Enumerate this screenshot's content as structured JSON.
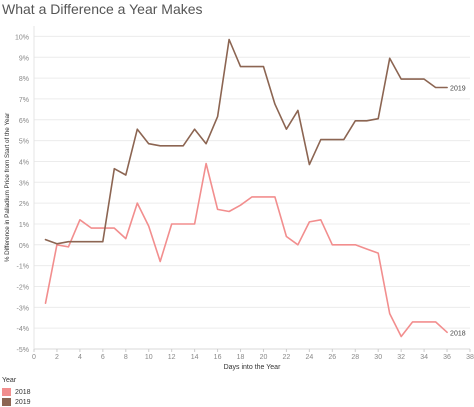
{
  "title": "What a Difference a Year Makes",
  "chart_data": {
    "type": "line",
    "title": "What a Difference a Year Makes",
    "xlabel": "Days into the Year",
    "ylabel": "% Difference in Palladium Price from Start of the Year",
    "xlim": [
      0,
      38
    ],
    "ylim": [
      -5,
      10.5
    ],
    "x_ticks": [
      "0",
      "2",
      "4",
      "6",
      "8",
      "10",
      "12",
      "14",
      "16",
      "18",
      "20",
      "22",
      "24",
      "26",
      "28",
      "30",
      "32",
      "34",
      "36",
      "38"
    ],
    "y_ticks": [
      "10%",
      "9%",
      "8%",
      "7%",
      "6%",
      "5%",
      "4%",
      "3%",
      "2%",
      "1%",
      "0%",
      "-1%",
      "-2%",
      "-3%",
      "-4%",
      "-5%"
    ],
    "grid": true,
    "legend_title": "Year",
    "series": [
      {
        "name": "2018",
        "color": "#f28e8e",
        "x": [
          1,
          2,
          3,
          4,
          5,
          6,
          7,
          8,
          9,
          10,
          11,
          12,
          13,
          14,
          15,
          16,
          17,
          18,
          19,
          20,
          21,
          22,
          23,
          24,
          25,
          26,
          27,
          28,
          29,
          30,
          31,
          32,
          33,
          34,
          35,
          36
        ],
        "y": [
          -2.8,
          0.0,
          -0.1,
          1.2,
          0.8,
          0.8,
          0.8,
          0.3,
          2.0,
          0.9,
          -0.8,
          1.0,
          1.0,
          1.0,
          3.9,
          1.7,
          1.6,
          1.9,
          2.3,
          2.3,
          2.3,
          0.4,
          0.0,
          1.1,
          1.2,
          0.0,
          0.0,
          0.0,
          -0.2,
          -0.4,
          -3.3,
          -4.4,
          -3.7,
          -3.7,
          -3.7,
          -4.2
        ],
        "end_label": "2018"
      },
      {
        "name": "2019",
        "color": "#8c6552",
        "x": [
          1,
          2,
          3,
          4,
          5,
          6,
          7,
          8,
          9,
          10,
          11,
          12,
          13,
          14,
          15,
          16,
          17,
          18,
          19,
          20,
          21,
          22,
          23,
          24,
          25,
          26,
          27,
          28,
          29,
          30,
          31,
          32,
          33,
          34,
          35,
          36
        ],
        "y": [
          0.25,
          0.05,
          0.15,
          0.15,
          0.15,
          0.15,
          3.65,
          3.35,
          5.55,
          4.85,
          4.75,
          4.75,
          4.75,
          5.55,
          4.85,
          6.15,
          9.85,
          8.55,
          8.55,
          8.55,
          6.75,
          5.55,
          6.45,
          3.85,
          5.05,
          5.05,
          5.05,
          5.95,
          5.95,
          6.05,
          8.95,
          7.95,
          7.95,
          7.95,
          7.55,
          7.55
        ],
        "end_label": "2019"
      }
    ]
  }
}
